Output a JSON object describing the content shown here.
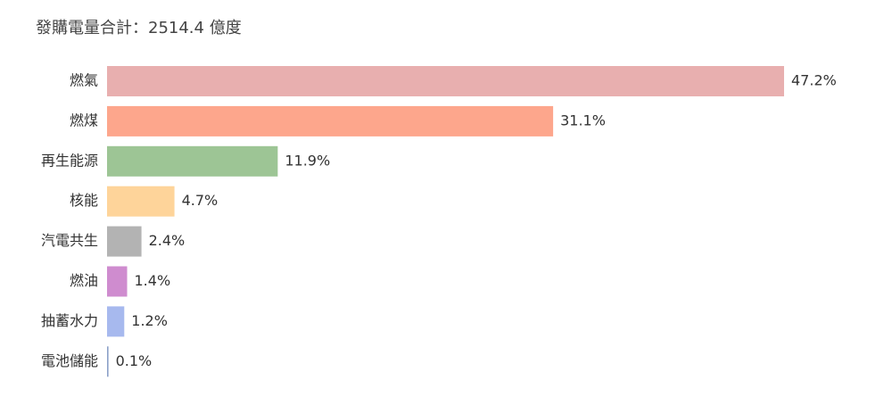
{
  "chart_data": {
    "type": "bar",
    "orientation": "horizontal",
    "title": "發購電量合計：2514.4 億度",
    "categories": [
      "燃氣",
      "燃煤",
      "再生能源",
      "核能",
      "汽電共生",
      "燃油",
      "抽蓄水力",
      "電池儲能"
    ],
    "values": [
      47.2,
      31.1,
      11.9,
      4.7,
      2.4,
      1.4,
      1.2,
      0.1
    ],
    "value_labels": [
      "47.2%",
      "31.1%",
      "11.9%",
      "4.7%",
      "2.4%",
      "1.4%",
      "1.2%",
      "0.1%"
    ],
    "colors": [
      "#e8afaf",
      "#fda68c",
      "#9dc595",
      "#fed49a",
      "#b3b3b3",
      "#cf8ccf",
      "#a7b9ee",
      "#8ca0c8"
    ]
  }
}
